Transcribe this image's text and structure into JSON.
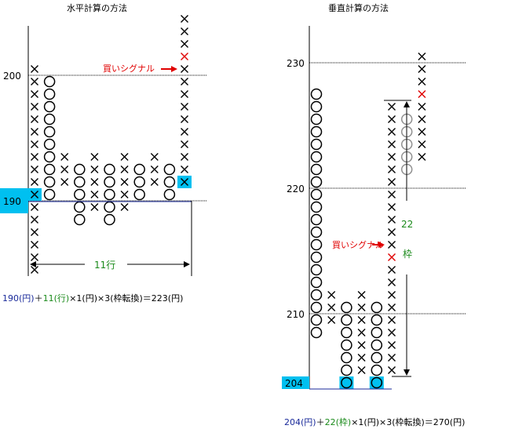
{
  "left": {
    "title": "水平計算の方法",
    "y_ticks": [
      {
        "label": "200",
        "value": 200
      },
      {
        "label": "190",
        "value": 190
      }
    ],
    "box_size": 1,
    "reversal": 3,
    "buy_signal_label": "買いシグナル",
    "count_label": "11行",
    "columns": [
      {
        "type": "X",
        "low": 184,
        "high": 200
      },
      {
        "type": "O",
        "low": 190,
        "high": 199
      },
      {
        "type": "X",
        "low": 191,
        "high": 193
      },
      {
        "type": "O",
        "low": 188,
        "high": 192
      },
      {
        "type": "X",
        "low": 189,
        "high": 193
      },
      {
        "type": "O",
        "low": 188,
        "high": 192
      },
      {
        "type": "X",
        "low": 189,
        "high": 193
      },
      {
        "type": "O",
        "low": 190,
        "high": 192
      },
      {
        "type": "X",
        "low": 191,
        "high": 193
      },
      {
        "type": "O",
        "low": 190,
        "high": 192
      },
      {
        "type": "X",
        "low": 191,
        "high": 204,
        "signal": 201
      }
    ],
    "shaded_boxes": [
      {
        "col": 0,
        "value": 190
      },
      {
        "col": 10,
        "value": 191
      }
    ],
    "formula": [
      {
        "text": "190(円)",
        "color": "blue"
      },
      {
        "text": "＋",
        "color": "black"
      },
      {
        "text": "11(行)",
        "color": "green"
      },
      {
        "text": "×1(円)×3(枠転換)＝223(円)",
        "color": "black"
      }
    ]
  },
  "right": {
    "title": "垂直計算の方法",
    "y_ticks": [
      {
        "label": "230",
        "value": 230
      },
      {
        "label": "220",
        "value": 220
      },
      {
        "label": "210",
        "value": 210
      },
      {
        "label": "204",
        "value": 204
      }
    ],
    "box_size": 1,
    "reversal": 3,
    "buy_signal_label": "買いシグナル",
    "count_label_num": "22",
    "count_label_unit": "枠",
    "columns": [
      {
        "type": "O",
        "low": 209,
        "high": 228
      },
      {
        "type": "X",
        "low": 210,
        "high": 212
      },
      {
        "type": "O",
        "low": 205,
        "high": 211
      },
      {
        "type": "X",
        "low": 206,
        "high": 212
      },
      {
        "type": "O",
        "low": 205,
        "high": 211
      },
      {
        "type": "X",
        "low": 206,
        "high": 227,
        "signal": 215
      },
      {
        "type": "O",
        "low": 222,
        "high": 226,
        "grey": true
      },
      {
        "type": "X",
        "low": 223,
        "high": 231,
        "signal": 228
      }
    ],
    "shaded_boxes": [
      {
        "col": 2,
        "value": 205
      },
      {
        "col": 4,
        "value": 205
      }
    ],
    "formula": [
      {
        "text": "204(円)",
        "color": "blue"
      },
      {
        "text": "＋",
        "color": "black"
      },
      {
        "text": "22(枠)",
        "color": "green"
      },
      {
        "text": "×1(円)×3(枠転換)＝270(円)",
        "color": "black"
      }
    ]
  },
  "colors": {
    "highlight": "#00c0f0",
    "signal": "#e00000",
    "baseline": "#1a2a9a",
    "grey": "#909090",
    "formula_blue": "#1a2a9a",
    "formula_green": "#1a8a1a"
  }
}
